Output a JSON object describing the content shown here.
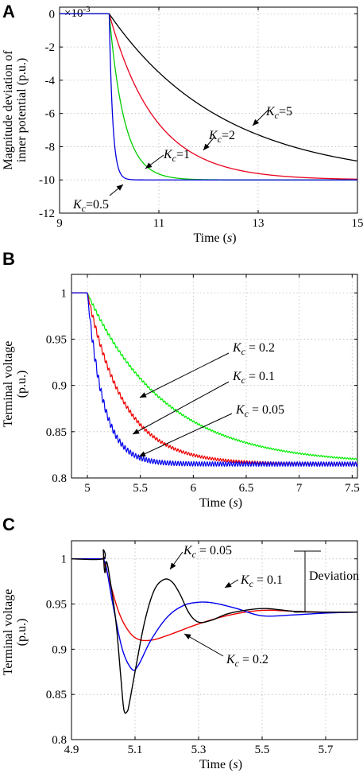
{
  "chart_data": [
    {
      "panel": "A",
      "type": "line",
      "xlabel": "Time  (s)",
      "ylabel_lines": [
        "Magnitude deviation of",
        "inner potential (p.u.)"
      ],
      "y_multiplier": "×10-3",
      "xlim": [
        9,
        15
      ],
      "ylim": [
        -12,
        0.4
      ],
      "xticks": [
        9,
        11,
        13,
        15
      ],
      "yticks": [
        0,
        -2,
        -4,
        -6,
        -8,
        -10,
        -12
      ],
      "grid": true,
      "series": [
        {
          "name": "Kc=5",
          "label_var": "K",
          "label_sub": "c",
          "label_val": "=5",
          "color": "#000000",
          "t0": 10,
          "tau": 2.3,
          "final": -10
        },
        {
          "name": "Kc=2",
          "label_var": "K",
          "label_sub": "c",
          "label_val": "=2",
          "color": "#e8001c",
          "t0": 10,
          "tau": 0.92,
          "final": -10
        },
        {
          "name": "Kc=1",
          "label_var": "K",
          "label_sub": "c",
          "label_val": "=1",
          "color": "#00cc00",
          "t0": 10,
          "tau": 0.3,
          "final": -10
        },
        {
          "name": "Kc=0.5",
          "label_var": "K",
          "label_sub": "c",
          "label_val": "=0.5",
          "color": "#0000dd",
          "t0": 10,
          "tau": 0.07,
          "final": -10
        }
      ]
    },
    {
      "panel": "B",
      "type": "line",
      "xlabel": "Time  (s)",
      "ylabel_lines": [
        "Terminal voltage",
        "(p.u.)"
      ],
      "xlim": [
        4.85,
        7.55
      ],
      "ylim": [
        0.8,
        1.02
      ],
      "xticks": [
        5,
        5.5,
        6,
        6.5,
        7,
        7.5
      ],
      "yticks": [
        1,
        0.95,
        0.9,
        0.85,
        0.8
      ],
      "grid": true,
      "series": [
        {
          "name": "Kc = 0.2",
          "label_var": "K",
          "label_sub": "c",
          "label_val": " = 0.2",
          "color": "#00ee00",
          "t0": 5,
          "start": 1.0,
          "final": 0.815,
          "tau": 0.72,
          "ripple": 0.002
        },
        {
          "name": "Kc = 0.1",
          "label_var": "K",
          "label_sub": "c",
          "label_val": " = 0.1",
          "color": "#ee0000",
          "t0": 5,
          "start": 1.0,
          "final": 0.815,
          "tau": 0.34,
          "ripple": 0.004
        },
        {
          "name": "Kc = 0.05",
          "label_var": "K",
          "label_sub": "c",
          "label_val": " = 0.05",
          "color": "#0000ee",
          "t0": 5,
          "start": 1.0,
          "final": 0.815,
          "tau": 0.15,
          "ripple": 0.007
        }
      ]
    },
    {
      "panel": "C",
      "type": "line",
      "xlabel": "Time  (s)",
      "ylabel_lines": [
        "Terminal voltage",
        "(p.u.)"
      ],
      "xlim": [
        4.9,
        5.8
      ],
      "ylim": [
        0.8,
        1.02
      ],
      "xticks": [
        4.9,
        5.1,
        5.3,
        5.5,
        5.7
      ],
      "yticks": [
        1,
        0.95,
        0.9,
        0.85,
        0.8
      ],
      "grid": true,
      "deviation_label": "Deviation",
      "series": [
        {
          "name": "Kc = 0.05",
          "label_var": "K",
          "label_sub": "c",
          "label_val": " = 0.05",
          "color": "#000000",
          "points": [
            [
              4.9,
              1.0
            ],
            [
              4.999,
              1.0
            ],
            [
              5.0,
              1.01
            ],
            [
              5.003,
              0.99
            ],
            [
              5.006,
              0.985
            ],
            [
              5.01,
              0.997
            ],
            [
              5.02,
              0.98
            ],
            [
              5.04,
              0.93
            ],
            [
              5.055,
              0.87
            ],
            [
              5.065,
              0.833
            ],
            [
              5.075,
              0.831
            ],
            [
              5.082,
              0.84
            ],
            [
              5.1,
              0.875
            ],
            [
              5.13,
              0.93
            ],
            [
              5.16,
              0.965
            ],
            [
              5.19,
              0.977
            ],
            [
              5.215,
              0.975
            ],
            [
              5.24,
              0.962
            ],
            [
              5.27,
              0.94
            ],
            [
              5.3,
              0.93
            ],
            [
              5.34,
              0.932
            ],
            [
              5.4,
              0.94
            ],
            [
              5.5,
              0.945
            ],
            [
              5.6,
              0.942
            ],
            [
              5.7,
              0.941
            ],
            [
              5.8,
              0.941
            ]
          ]
        },
        {
          "name": "Kc = 0.1",
          "label_var": "K",
          "label_sub": "c",
          "label_val": " = 0.1",
          "color": "#0000ee",
          "points": [
            [
              4.9,
              1.0
            ],
            [
              4.999,
              1.0
            ],
            [
              5.0,
              1.0
            ],
            [
              5.01,
              0.99
            ],
            [
              5.03,
              0.95
            ],
            [
              5.06,
              0.9
            ],
            [
              5.09,
              0.878
            ],
            [
              5.11,
              0.882
            ],
            [
              5.15,
              0.91
            ],
            [
              5.2,
              0.935
            ],
            [
              5.25,
              0.948
            ],
            [
              5.3,
              0.952
            ],
            [
              5.35,
              0.951
            ],
            [
              5.42,
              0.945
            ],
            [
              5.5,
              0.937
            ],
            [
              5.6,
              0.938
            ],
            [
              5.7,
              0.94
            ],
            [
              5.8,
              0.941
            ]
          ]
        },
        {
          "name": "Kc = 0.2",
          "label_var": "K",
          "label_sub": "c",
          "label_val": " = 0.2",
          "color": "#ee0000",
          "points": [
            [
              4.9,
              1.0
            ],
            [
              4.999,
              1.0
            ],
            [
              5.0,
              1.0
            ],
            [
              5.02,
              0.975
            ],
            [
              5.05,
              0.94
            ],
            [
              5.08,
              0.92
            ],
            [
              5.11,
              0.911
            ],
            [
              5.15,
              0.91
            ],
            [
              5.2,
              0.915
            ],
            [
              5.3,
              0.928
            ],
            [
              5.4,
              0.938
            ],
            [
              5.5,
              0.943
            ],
            [
              5.6,
              0.942
            ],
            [
              5.7,
              0.941
            ],
            [
              5.8,
              0.941
            ]
          ]
        }
      ]
    }
  ]
}
